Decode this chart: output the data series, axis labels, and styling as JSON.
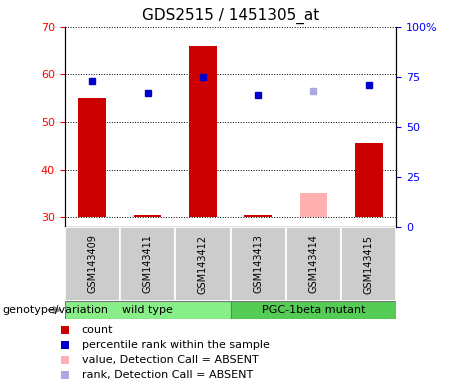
{
  "title": "GDS2515 / 1451305_at",
  "samples": [
    "GSM143409",
    "GSM143411",
    "GSM143412",
    "GSM143413",
    "GSM143414",
    "GSM143415"
  ],
  "x_positions": [
    0,
    1,
    2,
    3,
    4,
    5
  ],
  "bar_bottom": 30,
  "count_values": [
    55,
    30.5,
    66,
    30.5,
    35,
    45.5
  ],
  "count_absent": [
    false,
    false,
    false,
    false,
    true,
    false
  ],
  "rank_values": [
    73,
    67,
    75,
    66,
    68,
    71
  ],
  "rank_absent": [
    false,
    false,
    false,
    false,
    true,
    false
  ],
  "ylim_left": [
    28,
    70
  ],
  "ylim_right": [
    0,
    100
  ],
  "yticks_left": [
    30,
    40,
    50,
    60,
    70
  ],
  "yticks_right": [
    0,
    25,
    50,
    75,
    100
  ],
  "ytick_labels_right": [
    "0",
    "25",
    "50",
    "75",
    "100%"
  ],
  "bar_color": "#cc0000",
  "bar_absent_color": "#ffb0b0",
  "rank_color": "#0000cc",
  "rank_absent_color": "#aaaadd",
  "bar_width": 0.5,
  "wild_type_label": "wild type",
  "mutant_label": "PGC-1beta mutant",
  "genotype_label": "genotype/variation",
  "legend_count": "count",
  "legend_rank": "percentile rank within the sample",
  "legend_value_absent": "value, Detection Call = ABSENT",
  "legend_rank_absent": "rank, Detection Call = ABSENT",
  "group_color_wt": "#88ee88",
  "group_color_mut": "#55cc55",
  "sample_box_color": "#cccccc",
  "plot_bg_color": "#ffffff",
  "title_fontsize": 11,
  "tick_fontsize": 8,
  "label_fontsize": 8,
  "sample_fontsize": 7,
  "legend_fontsize": 8
}
